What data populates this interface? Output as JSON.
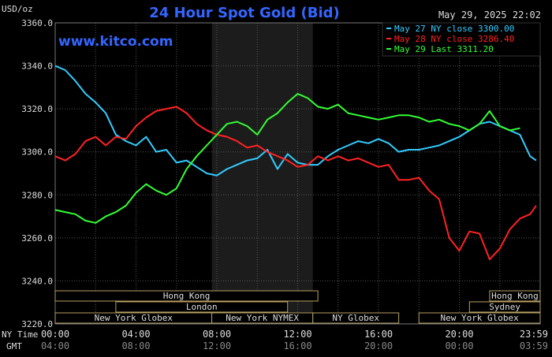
{
  "header": {
    "units": "USD/oz",
    "title": "24 Hour Spot Gold (Bid)",
    "timestamp": "May 29, 2025 22:02",
    "website": "www.kitco.com"
  },
  "colors": {
    "background": "#000000",
    "grid": "#555555",
    "title": "#3366ff",
    "website": "#3366ff",
    "series_may27": "#33ccff",
    "series_may28": "#ff2222",
    "series_may29": "#33ff33",
    "session_box": "#b8a060",
    "shade": "#1c1c1c",
    "text": "#dddddd"
  },
  "legend": [
    {
      "label": "May 27 NY close 3300.00",
      "color": "#33ccff"
    },
    {
      "label": "May 28 NY close 3286.40",
      "color": "#ff2222"
    },
    {
      "label": "May 29 Last 3311.20",
      "color": "#33ff33"
    }
  ],
  "x_axis": {
    "row_labels": [
      "NY Time",
      "GMT"
    ],
    "ny_ticks": [
      "00:00",
      "04:00",
      "08:00",
      "12:00",
      "16:00",
      "20:00",
      "23:59"
    ],
    "gmt_ticks": [
      "04:00",
      "08:00",
      "12:00",
      "16:00",
      "20:00",
      "00:00",
      "03:59"
    ]
  },
  "sessions": [
    {
      "label": "Hong Kong",
      "row": 0,
      "start": 0,
      "end": 13
    },
    {
      "label": "Hong Kong",
      "row": 0,
      "start": 21.5,
      "end": 24
    },
    {
      "label": "London",
      "row": 1,
      "start": 3,
      "end": 11.5
    },
    {
      "label": "Sydney",
      "row": 1,
      "start": 20.5,
      "end": 24
    },
    {
      "label": "New York Globex",
      "row": 2,
      "start": 0,
      "end": 7.75
    },
    {
      "label": "New York NYMEX",
      "row": 2,
      "start": 7.75,
      "end": 12.75
    },
    {
      "label": "NY Globex",
      "row": 2,
      "start": 12.75,
      "end": 17
    },
    {
      "label": "New York Globex",
      "row": 2,
      "start": 18,
      "end": 24
    }
  ],
  "chart_data": {
    "type": "line",
    "title": "24 Hour Spot Gold (Bid)",
    "ylabel": "USD/oz",
    "ylim": [
      3220,
      3360
    ],
    "xlim": [
      0,
      24
    ],
    "y_ticks": [
      3220,
      3240,
      3260,
      3280,
      3300,
      3320,
      3340,
      3360
    ],
    "y_tick_labels": [
      "3220.0",
      "3240.0",
      "3260.0",
      "3280.0",
      "3300.0",
      "3320.0",
      "3340.0",
      "3360.0"
    ],
    "shaded_region": [
      7.75,
      12.75
    ],
    "grid": true,
    "legend_position": "top-right",
    "series": [
      {
        "name": "May 27 NY close 3300.00",
        "color": "#33ccff",
        "x": [
          0,
          0.5,
          1,
          1.5,
          2,
          2.5,
          3,
          3.5,
          4,
          4.5,
          5,
          5.5,
          6,
          6.5,
          7,
          7.5,
          8,
          8.5,
          9,
          9.5,
          10,
          10.5,
          11,
          11.5,
          12,
          12.5,
          13,
          13.5,
          14,
          14.5,
          15,
          15.5,
          16,
          16.5,
          17,
          17.5,
          18,
          18.5,
          19,
          19.5,
          20,
          20.5,
          21,
          21.5,
          22,
          22.5,
          23,
          23.5,
          23.8
        ],
        "y": [
          3340,
          3338,
          3333,
          3327,
          3323,
          3318,
          3308,
          3305,
          3303,
          3307,
          3300,
          3301,
          3295,
          3296,
          3293,
          3290,
          3289,
          3292,
          3294,
          3296,
          3297,
          3301,
          3292,
          3299,
          3295,
          3294,
          3294,
          3298,
          3301,
          3303,
          3305,
          3304,
          3306,
          3304,
          3300,
          3301,
          3301,
          3302,
          3303,
          3305,
          3307,
          3310,
          3313,
          3314,
          3312,
          3310,
          3308,
          3298,
          3296
        ]
      },
      {
        "name": "May 28 NY close 3286.40",
        "color": "#ff2222",
        "x": [
          0,
          0.5,
          1,
          1.5,
          2,
          2.5,
          3,
          3.5,
          4,
          4.5,
          5,
          5.5,
          6,
          6.5,
          7,
          7.5,
          8,
          8.5,
          9,
          9.5,
          10,
          10.5,
          11,
          11.5,
          12,
          12.5,
          13,
          13.5,
          14,
          14.5,
          15,
          15.5,
          16,
          16.5,
          17,
          17.5,
          18,
          18.5,
          19,
          19.5,
          20,
          20.5,
          21,
          21.5,
          22,
          22.5,
          23,
          23.5,
          23.8
        ],
        "y": [
          3298,
          3296,
          3299,
          3305,
          3307,
          3303,
          3307,
          3306,
          3312,
          3316,
          3319,
          3320,
          3321,
          3318,
          3313,
          3310,
          3308,
          3307,
          3305,
          3302,
          3303,
          3300,
          3298,
          3296,
          3293,
          3294,
          3298,
          3296,
          3298,
          3296,
          3297,
          3295,
          3293,
          3294,
          3287,
          3287,
          3288,
          3282,
          3278,
          3260,
          3254,
          3263,
          3262,
          3250,
          3255,
          3264,
          3269,
          3271,
          3275
        ]
      },
      {
        "name": "May 29 Last 3311.20",
        "color": "#33ff33",
        "x": [
          0,
          0.5,
          1,
          1.5,
          2,
          2.5,
          3,
          3.5,
          4,
          4.5,
          5,
          5.5,
          6,
          6.5,
          7,
          7.5,
          8,
          8.5,
          9,
          9.5,
          10,
          10.5,
          11,
          11.5,
          12,
          12.5,
          13,
          13.5,
          14,
          14.5,
          15,
          15.5,
          16,
          16.5,
          17,
          17.5,
          18,
          18.5,
          19,
          19.5,
          20,
          20.5,
          21,
          21.5,
          22,
          22.5,
          23
        ],
        "y": [
          3273,
          3272,
          3271,
          3268,
          3267,
          3270,
          3272,
          3275,
          3281,
          3285,
          3282,
          3280,
          3283,
          3292,
          3298,
          3303,
          3308,
          3313,
          3314,
          3312,
          3308,
          3315,
          3318,
          3323,
          3327,
          3325,
          3321,
          3320,
          3322,
          3318,
          3317,
          3316,
          3315,
          3316,
          3317,
          3317,
          3316,
          3314,
          3315,
          3313,
          3312,
          3310,
          3313,
          3319,
          3312,
          3310,
          3311
        ]
      }
    ]
  }
}
